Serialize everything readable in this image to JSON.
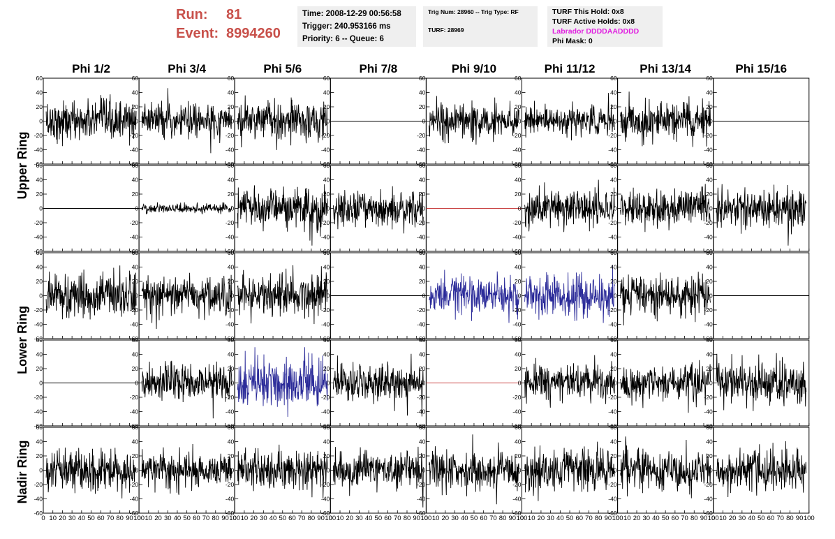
{
  "header": {
    "run_label": "Run:",
    "run_value": "81",
    "event_label": "Event:",
    "event_value": "8994260"
  },
  "info_time": {
    "time": "Time: 2008-12-29 00:56:58",
    "trigger": "Trigger: 240.953166 ms",
    "priority": "Priority: 6 -- Queue: 6"
  },
  "info_trig": {
    "trig": "Trig Num: 28960 -- Trig Type: RF",
    "turf": "TURF: 28969"
  },
  "info_turf": {
    "hold": "TURF This Hold: 0x8",
    "active": "TURF Active Holds: 0x8",
    "labrador": "Labrador DDDDAADDDD",
    "phimask": "Phi Mask: 0"
  },
  "colors": {
    "header_red": "#c8504a",
    "labrador_magenta": "#e01fe0",
    "info_bg": "#efefef",
    "trace_black": "#000000",
    "trace_blue": "#2b2b99",
    "trace_red": "#c84040"
  },
  "chart_data": {
    "type": "line",
    "columns": [
      "Phi 1/2",
      "Phi 3/4",
      "Phi 5/6",
      "Phi 7/8",
      "Phi 9/10",
      "Phi 11/12",
      "Phi 13/14",
      "Phi 15/16"
    ],
    "ring_labels": [
      "Upper Ring",
      "Lower Ring",
      "Nadir Ring"
    ],
    "rows": 5,
    "xlim": [
      0,
      100
    ],
    "ylim": [
      -60,
      60
    ],
    "x_ticks": [
      0,
      10,
      20,
      30,
      40,
      50,
      60,
      70,
      80,
      90,
      100
    ],
    "y_ticks": [
      -60,
      -40,
      -20,
      0,
      20,
      40,
      60
    ],
    "grid": false,
    "panels": [
      [
        {
          "amp": 14,
          "color": "black"
        },
        {
          "amp": 12,
          "color": "black"
        },
        {
          "amp": 14,
          "color": "black"
        },
        {
          "amp": 0,
          "color": "black"
        },
        {
          "amp": 12,
          "color": "black"
        },
        {
          "amp": 10,
          "color": "black"
        },
        {
          "amp": 13,
          "color": "black"
        },
        {
          "amp": 0,
          "color": "black"
        }
      ],
      [
        {
          "amp": 0,
          "color": "black"
        },
        {
          "amp": 3,
          "color": "black"
        },
        {
          "amp": 15,
          "color": "black"
        },
        {
          "amp": 13,
          "color": "black"
        },
        {
          "amp": 0,
          "color": "red"
        },
        {
          "amp": 13,
          "color": "black"
        },
        {
          "amp": 13,
          "color": "black"
        },
        {
          "amp": 14,
          "color": "black"
        }
      ],
      [
        {
          "amp": 15,
          "color": "black"
        },
        {
          "amp": 13,
          "color": "black"
        },
        {
          "amp": 15,
          "color": "black"
        },
        {
          "amp": 0,
          "color": "black"
        },
        {
          "amp": 13,
          "color": "blue"
        },
        {
          "amp": 15,
          "color": "blue"
        },
        {
          "amp": 14,
          "color": "black"
        },
        {
          "amp": 0,
          "color": "black"
        }
      ],
      [
        {
          "amp": 0,
          "color": "black"
        },
        {
          "amp": 14,
          "color": "black"
        },
        {
          "amp": 18,
          "color": "blue"
        },
        {
          "amp": 13,
          "color": "black"
        },
        {
          "amp": 0,
          "color": "red"
        },
        {
          "amp": 13,
          "color": "black"
        },
        {
          "amp": 12,
          "color": "black"
        },
        {
          "amp": 15,
          "color": "black"
        }
      ],
      [
        {
          "amp": 14,
          "color": "black"
        },
        {
          "amp": 13,
          "color": "black"
        },
        {
          "amp": 13,
          "color": "black"
        },
        {
          "amp": 13,
          "color": "black"
        },
        {
          "amp": 13,
          "color": "black"
        },
        {
          "amp": 15,
          "color": "black"
        },
        {
          "amp": 14,
          "color": "black"
        },
        {
          "amp": 14,
          "color": "black"
        }
      ]
    ]
  }
}
